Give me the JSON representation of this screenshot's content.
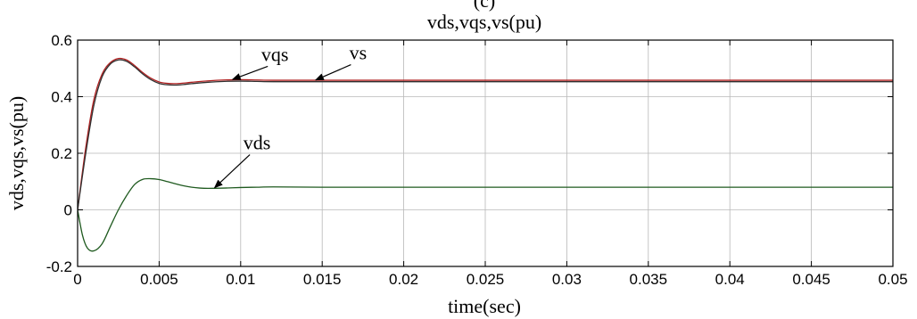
{
  "chart_data": {
    "type": "line",
    "title": "vds,vqs,vs(pu)",
    "title_prefix_fragment": "(c)",
    "xlabel": "time(sec)",
    "ylabel": "vds,vqs,vs(pu)",
    "xlim": [
      0,
      0.05
    ],
    "ylim": [
      -0.2,
      0.6
    ],
    "grid": true,
    "x_ticks": [
      0,
      0.005,
      0.01,
      0.015,
      0.02,
      0.025,
      0.03,
      0.035,
      0.04,
      0.045,
      0.05
    ],
    "x_tick_labels": [
      "0",
      "0.005",
      "0.01",
      "0.015",
      "0.02",
      "0.025",
      "0.03",
      "0.035",
      "0.04",
      "0.045",
      "0.05"
    ],
    "y_ticks": [
      -0.2,
      0,
      0.2,
      0.4,
      0.6
    ],
    "y_tick_labels": [
      "-0.2",
      "0",
      "0.2",
      "0.4",
      "0.6"
    ],
    "series": [
      {
        "name": "vs",
        "color": "#b02020",
        "x": [
          0,
          0.0005,
          0.001,
          0.0015,
          0.002,
          0.0025,
          0.003,
          0.0035,
          0.004,
          0.0045,
          0.005,
          0.0055,
          0.006,
          0.0065,
          0.007,
          0.008,
          0.009,
          0.01,
          0.011,
          0.012,
          0.015,
          0.02,
          0.03,
          0.04,
          0.05
        ],
        "y": [
          0.0,
          0.22,
          0.39,
          0.48,
          0.52,
          0.535,
          0.53,
          0.51,
          0.485,
          0.465,
          0.452,
          0.447,
          0.446,
          0.448,
          0.451,
          0.456,
          0.459,
          0.46,
          0.459,
          0.458,
          0.458,
          0.458,
          0.458,
          0.458,
          0.458
        ]
      },
      {
        "name": "vqs",
        "color": "#303030",
        "x": [
          0,
          0.0005,
          0.001,
          0.0015,
          0.002,
          0.0025,
          0.003,
          0.0035,
          0.004,
          0.0045,
          0.005,
          0.0055,
          0.006,
          0.0065,
          0.007,
          0.008,
          0.009,
          0.01,
          0.011,
          0.012,
          0.015,
          0.02,
          0.03,
          0.04,
          0.05
        ],
        "y": [
          0.0,
          0.2,
          0.37,
          0.47,
          0.515,
          0.53,
          0.525,
          0.505,
          0.48,
          0.46,
          0.447,
          0.442,
          0.441,
          0.443,
          0.446,
          0.451,
          0.454,
          0.455,
          0.454,
          0.453,
          0.453,
          0.453,
          0.453,
          0.453,
          0.453
        ]
      },
      {
        "name": "vds",
        "color": "#1f5a1f",
        "x": [
          0,
          0.0003,
          0.0006,
          0.001,
          0.0015,
          0.002,
          0.0025,
          0.003,
          0.0035,
          0.004,
          0.0045,
          0.005,
          0.0055,
          0.006,
          0.0065,
          0.007,
          0.0075,
          0.008,
          0.009,
          0.01,
          0.011,
          0.012,
          0.015,
          0.02,
          0.03,
          0.04,
          0.05
        ],
        "y": [
          0.0,
          -0.09,
          -0.135,
          -0.145,
          -0.12,
          -0.06,
          0.0,
          0.05,
          0.09,
          0.108,
          0.11,
          0.107,
          0.1,
          0.092,
          0.085,
          0.08,
          0.077,
          0.076,
          0.077,
          0.079,
          0.08,
          0.081,
          0.08,
          0.08,
          0.08,
          0.08,
          0.08
        ]
      }
    ],
    "annotations": [
      {
        "text": "vqs",
        "label_at": [
          0.0121,
          0.526
        ],
        "arrow_to": [
          0.0095,
          0.461
        ]
      },
      {
        "text": "vs",
        "label_at": [
          0.0172,
          0.532
        ],
        "arrow_to": [
          0.0146,
          0.459
        ]
      },
      {
        "text": "vds",
        "label_at": [
          0.011,
          0.214
        ],
        "arrow_to": [
          0.0084,
          0.078
        ]
      }
    ]
  }
}
